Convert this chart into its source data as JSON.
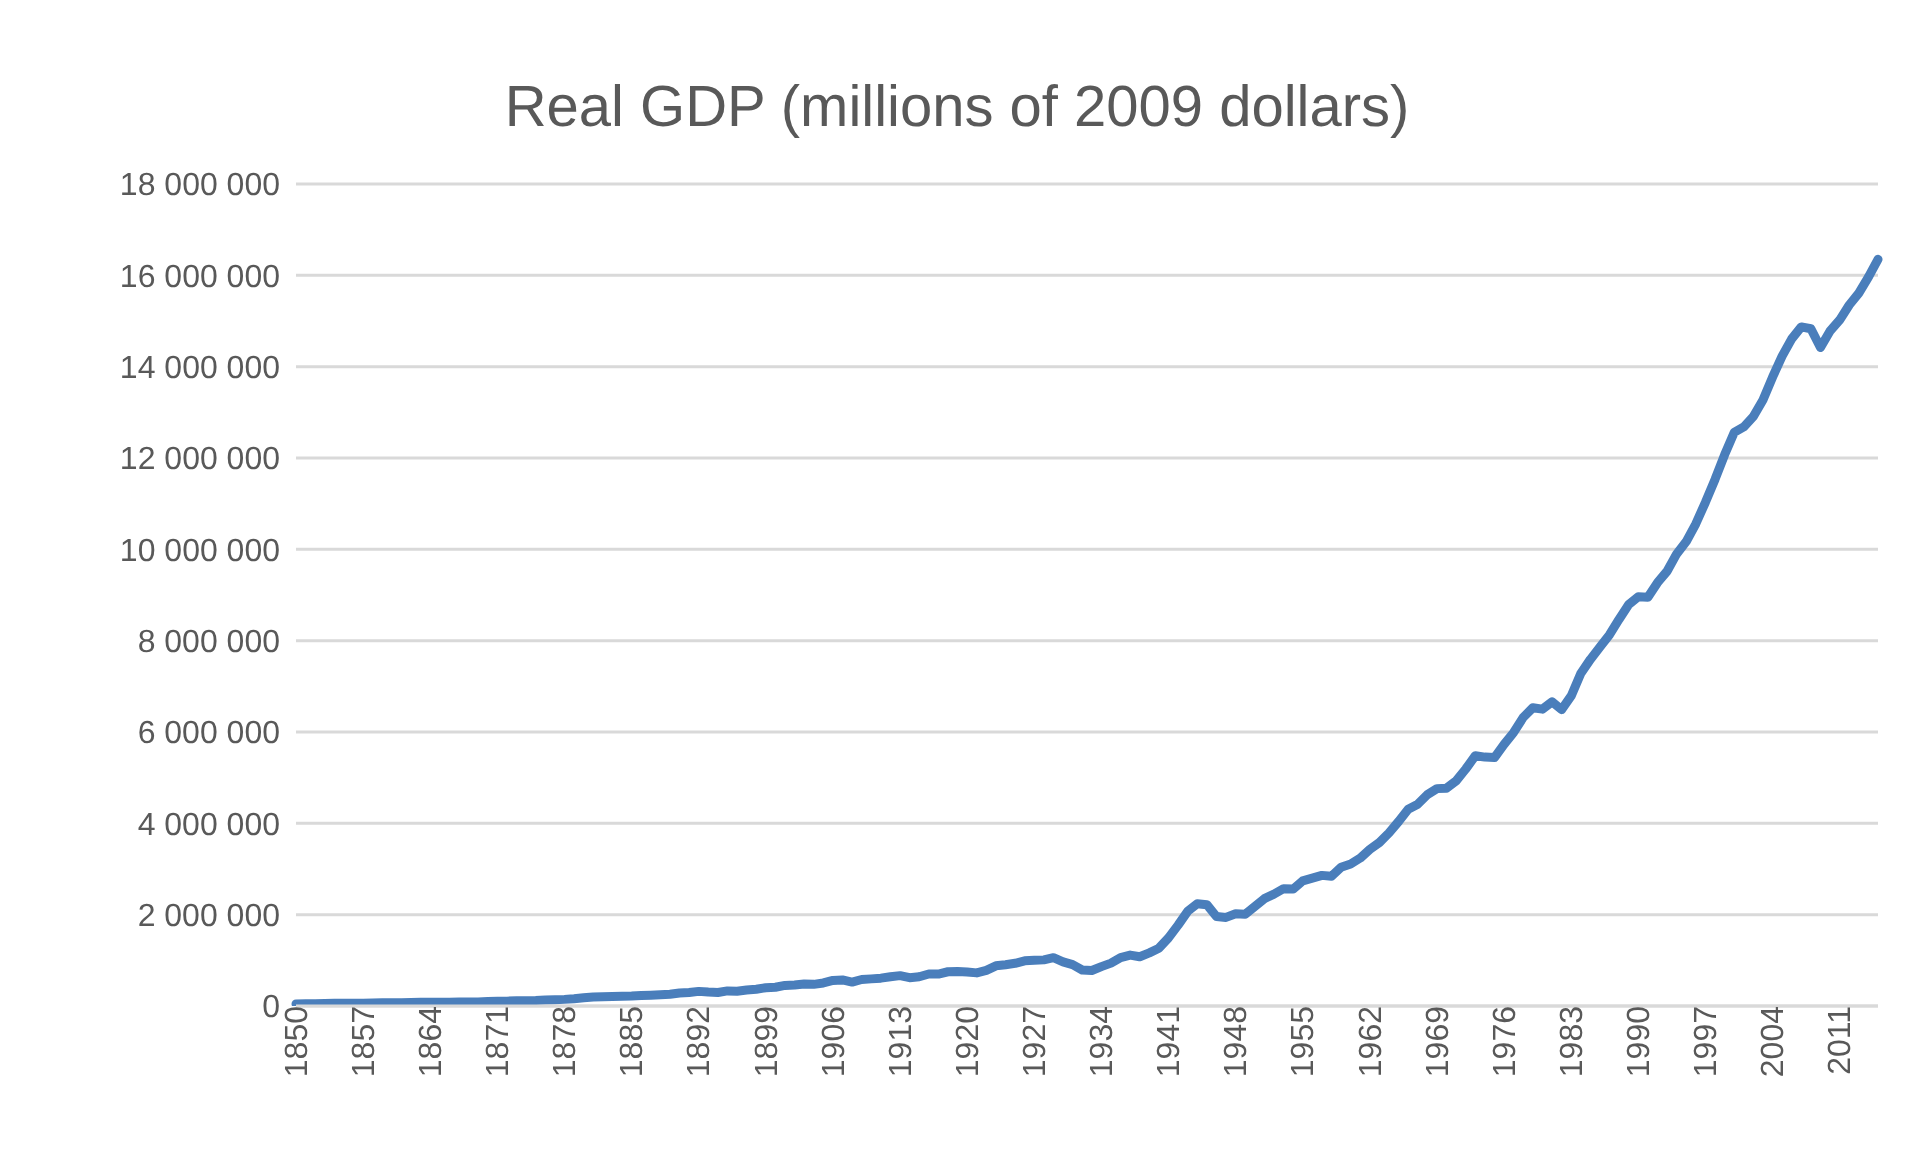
{
  "chart_data": {
    "type": "line",
    "title": "Real GDP (millions of 2009 dollars)",
    "categories": [
      "1850",
      null,
      null,
      null,
      null,
      null,
      null,
      "1857",
      null,
      null,
      null,
      null,
      null,
      null,
      "1864",
      null,
      null,
      null,
      null,
      null,
      null,
      "1871",
      null,
      null,
      null,
      null,
      null,
      null,
      "1878",
      null,
      null,
      null,
      null,
      null,
      null,
      "1885",
      null,
      null,
      null,
      null,
      null,
      null,
      "1892",
      null,
      null,
      null,
      null,
      null,
      null,
      "1899",
      null,
      null,
      null,
      null,
      null,
      null,
      "1906",
      null,
      null,
      null,
      null,
      null,
      null,
      "1913",
      null,
      null,
      null,
      null,
      null,
      null,
      "1920",
      null,
      null,
      null,
      null,
      null,
      null,
      "1927",
      null,
      null,
      null,
      null,
      null,
      null,
      "1934",
      null,
      null,
      null,
      null,
      null,
      null,
      "1941",
      null,
      null,
      null,
      null,
      null,
      null,
      "1948",
      null,
      null,
      null,
      null,
      null,
      null,
      "1955",
      null,
      null,
      null,
      null,
      null,
      null,
      "1962",
      null,
      null,
      null,
      null,
      null,
      null,
      "1969",
      null,
      null,
      null,
      null,
      null,
      null,
      "1976",
      null,
      null,
      null,
      null,
      null,
      null,
      "1983",
      null,
      null,
      null,
      null,
      null,
      null,
      "1990",
      null,
      null,
      null,
      null,
      null,
      null,
      "1997",
      null,
      null,
      null,
      null,
      null,
      null,
      "2004",
      null,
      null,
      null,
      null,
      null,
      null,
      "2011",
      null,
      null,
      null,
      null
    ],
    "series": [
      {
        "color": "#4a7ebb",
        "values": [
          45000,
          47000,
          52000,
          55000,
          58000,
          60000,
          61000,
          62000,
          64000,
          69000,
          70000,
          71000,
          78000,
          83000,
          84000,
          84000,
          83000,
          85000,
          87000,
          89000,
          99000,
          102000,
          106000,
          114000,
          117000,
          121000,
          130000,
          137000,
          145000,
          160000,
          180000,
          196000,
          205000,
          210000,
          215000,
          219000,
          229000,
          238000,
          245000,
          256000,
          283000,
          295000,
          320000,
          305000,
          296000,
          330000,
          325000,
          350000,
          368000,
          400000,
          411000,
          450000,
          458000,
          480000,
          474000,
          505000,
          560000,
          570000,
          525000,
          580000,
          594000,
          610000,
          640000,
          665000,
          620000,
          640000,
          700000,
          700000,
          750000,
          755000,
          745000,
          725000,
          780000,
          880000,
          905000,
          935000,
          990000,
          1000000,
          1010000,
          1057000,
          967000,
          905000,
          788000,
          778000,
          862000,
          939000,
          1061000,
          1115000,
          1078000,
          1164000,
          1266000,
          1491000,
          1771000,
          2073000,
          2239000,
          2218000,
          1960000,
          1940000,
          2020000,
          2010000,
          2180000,
          2350000,
          2450000,
          2570000,
          2560000,
          2740000,
          2800000,
          2860000,
          2840000,
          3040000,
          3110000,
          3240000,
          3430000,
          3580000,
          3790000,
          4040000,
          4310000,
          4420000,
          4630000,
          4760000,
          4770000,
          4930000,
          5190000,
          5480000,
          5450000,
          5440000,
          5730000,
          5990000,
          6320000,
          6530000,
          6500000,
          6660000,
          6490000,
          6790000,
          7280000,
          7590000,
          7860000,
          8130000,
          8470000,
          8790000,
          8960000,
          8950000,
          9270000,
          9520000,
          9900000,
          10170000,
          10560000,
          11030000,
          11530000,
          12070000,
          12560000,
          12680000,
          12910000,
          13270000,
          13770000,
          14230000,
          14610000,
          14870000,
          14830000,
          14420000,
          14780000,
          15020000,
          15350000,
          15610000,
          15960000,
          16350000
        ]
      }
    ],
    "ylim": [
      0,
      18000000
    ],
    "yticks": [
      0,
      {
        "value": 2000000,
        "label": "2 000 000"
      },
      {
        "value": 4000000,
        "label": "4 000 000"
      },
      {
        "value": 6000000,
        "label": "6 000 000"
      },
      {
        "value": 8000000,
        "label": "8 000 000"
      },
      {
        "value": 10000000,
        "label": "10 000 000"
      },
      {
        "value": 12000000,
        "label": "12 000 000"
      },
      {
        "value": 14000000,
        "label": "14 000 000"
      },
      {
        "value": 16000000,
        "label": "16 000 000"
      },
      {
        "value": 18000000,
        "label": "18 000 000"
      }
    ],
    "grid": "y",
    "legend": false,
    "marker": "none",
    "line_style": "solid"
  }
}
